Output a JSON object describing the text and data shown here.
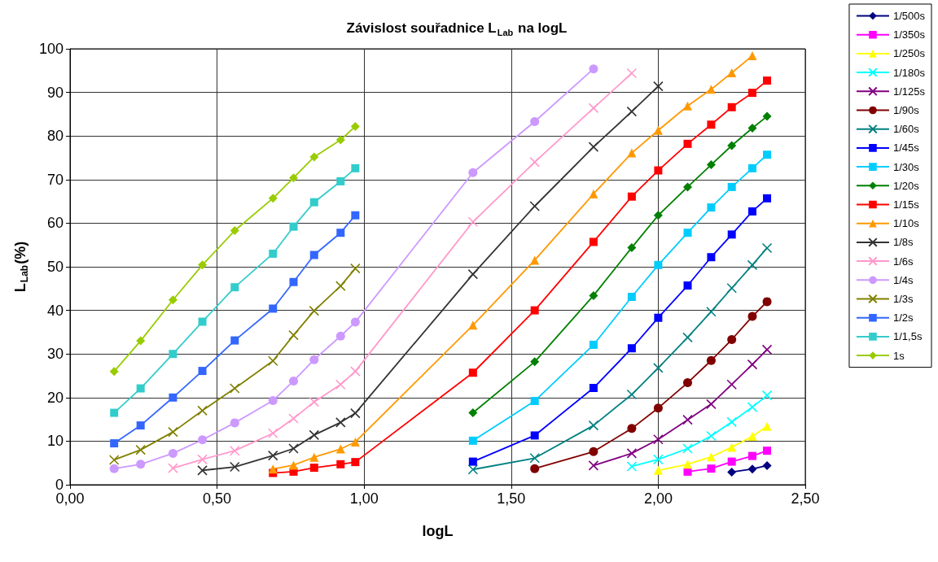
{
  "chart_data": {
    "type": "line",
    "title": "Závislost souřadnice L$_{Lab}$ na logL",
    "xlabel": "logL",
    "ylabel": "L$_{Lab}$(%)",
    "xlim": [
      0,
      2.5
    ],
    "xticks": [
      {
        "value": 0,
        "label": "0,00"
      },
      {
        "value": 0.5,
        "label": "0,50"
      },
      {
        "value": 1,
        "label": "1,00"
      },
      {
        "value": 1.5,
        "label": "1,50"
      },
      {
        "value": 2,
        "label": "2,00"
      },
      {
        "value": 2.5,
        "label": "2,50"
      }
    ],
    "ylim": [
      0,
      100
    ],
    "yticks": [
      0,
      10,
      20,
      30,
      40,
      50,
      60,
      70,
      80,
      90,
      100
    ],
    "grid": true,
    "legend": "right",
    "series": [
      {
        "name": "1/500s",
        "color": "#000080",
        "marker": "diamond",
        "x": [
          2.25,
          2.32,
          2.37
        ],
        "values": [
          2.9,
          3.6,
          4.4
        ]
      },
      {
        "name": "1/350s",
        "color": "#ff00ff",
        "marker": "square",
        "x": [
          2.1,
          2.18,
          2.25,
          2.32,
          2.37
        ],
        "values": [
          3.0,
          3.7,
          5.3,
          6.6,
          7.8
        ]
      },
      {
        "name": "1/250s",
        "color": "#ffff00",
        "marker": "triangle",
        "x": [
          2.0,
          2.1,
          2.18,
          2.25,
          2.32,
          2.37
        ],
        "values": [
          3.3,
          4.7,
          6.4,
          8.6,
          11.1,
          13.4
        ]
      },
      {
        "name": "1/180s",
        "color": "#00ffff",
        "marker": "cross",
        "x": [
          1.91,
          2.0,
          2.1,
          2.18,
          2.25,
          2.32,
          2.37
        ],
        "values": [
          4.2,
          5.8,
          8.3,
          11.2,
          14.4,
          17.8,
          20.5
        ]
      },
      {
        "name": "1/125s",
        "color": "#800080",
        "marker": "cross",
        "x": [
          1.78,
          1.91,
          2.0,
          2.1,
          2.18,
          2.25,
          2.32,
          2.37
        ],
        "values": [
          4.4,
          7.2,
          10.4,
          14.9,
          18.5,
          23.0,
          27.6,
          31.0
        ]
      },
      {
        "name": "1/90s",
        "color": "#800000",
        "marker": "circle",
        "x": [
          1.58,
          1.78,
          1.91,
          2.0,
          2.1,
          2.18,
          2.25,
          2.32,
          2.37
        ],
        "values": [
          3.7,
          7.6,
          12.9,
          17.6,
          23.4,
          28.5,
          33.3,
          38.6,
          42.0
        ]
      },
      {
        "name": "1/60s",
        "color": "#008080",
        "marker": "cross",
        "x": [
          1.37,
          1.58,
          1.78,
          1.91,
          2.0,
          2.1,
          2.18,
          2.25,
          2.32,
          2.37
        ],
        "values": [
          3.5,
          6.1,
          13.6,
          20.7,
          26.8,
          33.8,
          39.7,
          45.1,
          50.4,
          54.3
        ]
      },
      {
        "name": "1/45s",
        "color": "#0000ff",
        "marker": "square",
        "x": [
          1.37,
          1.58,
          1.78,
          1.91,
          2.0,
          2.1,
          2.18,
          2.25,
          2.32,
          2.37
        ],
        "values": [
          5.3,
          11.3,
          22.2,
          31.3,
          38.3,
          45.7,
          52.2,
          57.4,
          62.7,
          65.7
        ]
      },
      {
        "name": "1/30s",
        "color": "#00ccff",
        "marker": "square",
        "x": [
          1.37,
          1.58,
          1.78,
          1.91,
          2.0,
          2.1,
          2.18,
          2.25,
          2.32,
          2.37
        ],
        "values": [
          10.1,
          19.2,
          32.1,
          43.1,
          50.4,
          57.8,
          63.6,
          68.3,
          72.6,
          75.7
        ]
      },
      {
        "name": "1/20s",
        "color": "#008000",
        "marker": "diamond",
        "x": [
          1.37,
          1.58,
          1.78,
          1.91,
          2.0,
          2.1,
          2.18,
          2.25,
          2.32,
          2.37
        ],
        "values": [
          16.5,
          28.2,
          43.4,
          54.4,
          61.8,
          68.3,
          73.4,
          77.8,
          81.8,
          84.5
        ]
      },
      {
        "name": "1/15s",
        "color": "#ff0000",
        "marker": "square",
        "x": [
          0.69,
          0.76,
          0.83,
          0.92,
          0.97,
          1.37,
          1.58,
          1.78,
          1.91,
          2.0,
          2.1,
          2.18,
          2.25,
          2.32,
          2.37
        ],
        "values": [
          2.7,
          3.0,
          3.9,
          4.7,
          5.2,
          25.7,
          40.0,
          55.7,
          66.1,
          72.1,
          78.2,
          82.6,
          86.6,
          89.9,
          92.7
        ]
      },
      {
        "name": "1/10s",
        "color": "#ff9900",
        "marker": "triangle",
        "x": [
          0.69,
          0.76,
          0.83,
          0.92,
          0.97,
          1.37,
          1.58,
          1.78,
          1.91,
          2.0,
          2.1,
          2.18,
          2.25,
          2.32
        ],
        "values": [
          3.6,
          4.5,
          6.3,
          8.2,
          9.8,
          36.6,
          51.5,
          66.7,
          76.1,
          81.3,
          86.9,
          90.7,
          94.5,
          98.4
        ]
      },
      {
        "name": "1/8s",
        "color": "#333333",
        "marker": "cross",
        "x": [
          0.45,
          0.56,
          0.69,
          0.76,
          0.83,
          0.92,
          0.97,
          1.37,
          1.58,
          1.78,
          1.91,
          2.0
        ],
        "values": [
          3.3,
          4.1,
          6.7,
          8.3,
          11.4,
          14.3,
          16.4,
          48.3,
          63.9,
          77.5,
          85.6,
          91.4
        ]
      },
      {
        "name": "1/6s",
        "color": "#ff99cc",
        "marker": "cross",
        "x": [
          0.35,
          0.45,
          0.56,
          0.69,
          0.76,
          0.83,
          0.92,
          0.97,
          1.37,
          1.58,
          1.78,
          1.91
        ],
        "values": [
          3.8,
          5.8,
          7.8,
          11.8,
          15.2,
          19.0,
          23.0,
          26.0,
          60.3,
          74.0,
          86.4,
          94.4
        ]
      },
      {
        "name": "1/4s",
        "color": "#cc99ff",
        "marker": "circle",
        "x": [
          0.15,
          0.24,
          0.35,
          0.45,
          0.56,
          0.69,
          0.76,
          0.83,
          0.92,
          0.97,
          1.37,
          1.58,
          1.78
        ],
        "values": [
          3.7,
          4.7,
          7.2,
          10.3,
          14.2,
          19.3,
          23.8,
          28.7,
          34.1,
          37.3,
          71.6,
          83.3,
          95.4
        ]
      },
      {
        "name": "1/3s",
        "color": "#808000",
        "marker": "cross",
        "x": [
          0.15,
          0.24,
          0.35,
          0.45,
          0.56,
          0.69,
          0.76,
          0.83,
          0.92,
          0.97
        ],
        "values": [
          5.7,
          8.0,
          12.1,
          17.0,
          22.1,
          28.4,
          34.3,
          39.9,
          45.6,
          49.6
        ]
      },
      {
        "name": "1/2s",
        "color": "#3366ff",
        "marker": "square",
        "x": [
          0.15,
          0.24,
          0.35,
          0.45,
          0.56,
          0.69,
          0.76,
          0.83,
          0.92,
          0.97
        ],
        "values": [
          9.5,
          13.6,
          20.0,
          26.1,
          33.1,
          40.4,
          46.5,
          52.7,
          57.8,
          61.8
        ]
      },
      {
        "name": "1/1,5s",
        "color": "#33cccc",
        "marker": "square",
        "x": [
          0.15,
          0.24,
          0.35,
          0.45,
          0.56,
          0.69,
          0.76,
          0.83,
          0.92,
          0.97
        ],
        "values": [
          16.5,
          22.1,
          30.0,
          37.4,
          45.3,
          53.0,
          59.2,
          64.8,
          69.6,
          72.6
        ]
      },
      {
        "name": "1s",
        "color": "#99cc00",
        "marker": "diamond",
        "x": [
          0.15,
          0.24,
          0.35,
          0.45,
          0.56,
          0.69,
          0.76,
          0.83,
          0.92,
          0.97
        ],
        "values": [
          26.0,
          33.0,
          42.4,
          50.4,
          58.3,
          65.7,
          70.4,
          75.2,
          79.1,
          82.2
        ]
      }
    ]
  }
}
